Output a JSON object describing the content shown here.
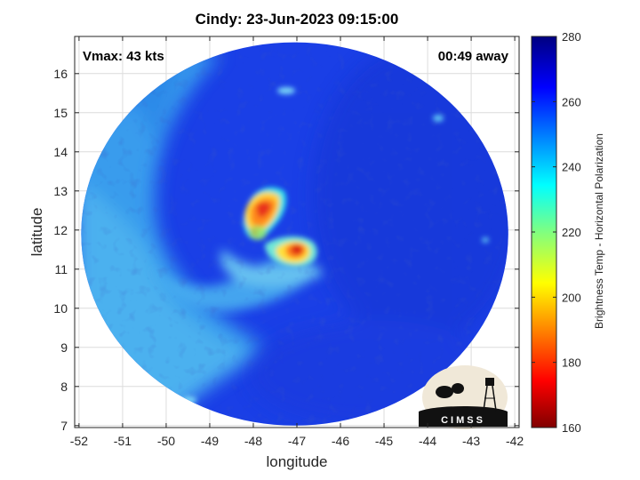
{
  "title": "Cindy: 23-Jun-2023 09:15:00",
  "annotations": {
    "vmax": "Vmax: 43 kts",
    "away": "00:49 away"
  },
  "axes": {
    "xlabel": "longitude",
    "ylabel": "latitude",
    "xlim": [
      -52.1,
      -41.9
    ],
    "ylim": [
      6.95,
      16.95
    ],
    "xticks": [
      -52,
      -51,
      -50,
      -49,
      -48,
      -47,
      -46,
      -45,
      -44,
      -43,
      -42
    ],
    "yticks": [
      7,
      8,
      9,
      10,
      11,
      12,
      13,
      14,
      15,
      16
    ],
    "grid": true
  },
  "colorbar": {
    "label": "Brightness Temp - Horizontal Polarization",
    "min": 160,
    "max": 280,
    "ticks": [
      160,
      180,
      200,
      220,
      240,
      260,
      280
    ],
    "colormap": "jet"
  },
  "swath": {
    "center_lon": -47.05,
    "center_lat": 11.9,
    "radius_deg": 4.9
  },
  "storm": {
    "name": "Cindy",
    "center_lon": -47.3,
    "center_lat": 12.1,
    "cold_core_1": {
      "lon": -47.8,
      "lat": 12.6,
      "min_temp": 185
    },
    "cold_core_2": {
      "lon": -47.0,
      "lat": 11.55,
      "min_temp": 180
    }
  },
  "logo": {
    "text": "CIMSS"
  },
  "colors": {
    "background_warm": "#1a3fe6",
    "outer_band": "#3ba6ee",
    "grid": "#dcdcdc"
  }
}
